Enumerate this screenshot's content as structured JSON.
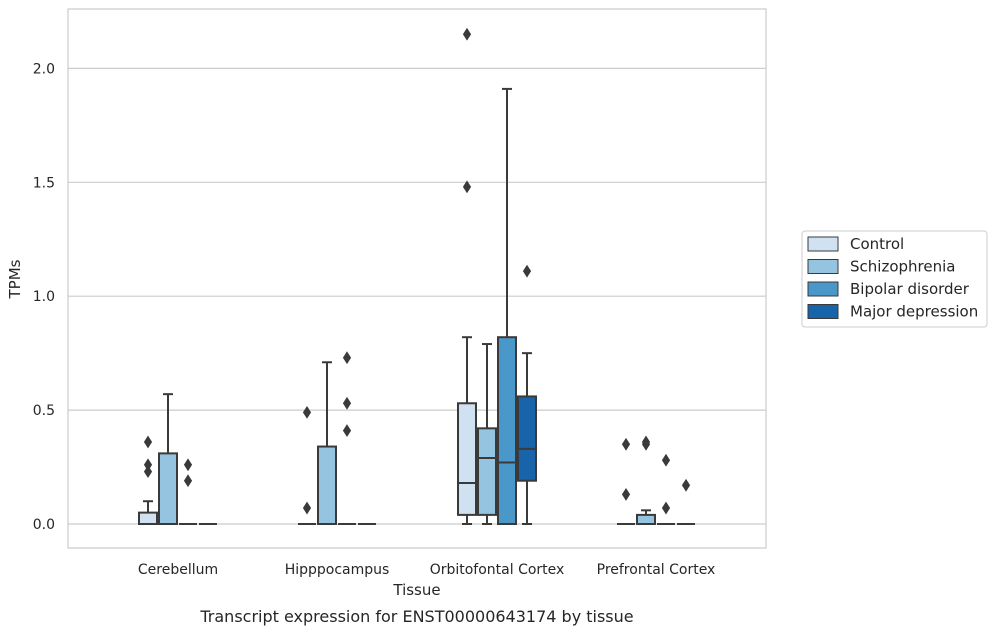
{
  "caption": "Transcript expression for ENST00000643174 by tissue",
  "chart_data": {
    "type": "box",
    "xlabel": "Tissue",
    "ylabel": "TPMs",
    "ylim": [
      -0.1,
      2.27
    ],
    "yticks": [
      0.0,
      0.5,
      1.0,
      1.5,
      2.0
    ],
    "ytick_labels": [
      "0.0",
      "0.5",
      "1.0",
      "1.5",
      "2.0"
    ],
    "grid": "horizontal",
    "legend_position": "right",
    "categories": [
      "Cerebellum",
      "Hipppocampus",
      "Orbitofontal Cortex",
      "Prefrontal Cortex"
    ],
    "series": [
      {
        "name": "Control",
        "color": "#d0e1f2",
        "boxes": [
          {
            "q1": 0.0,
            "median": 0.0,
            "q3": 0.05,
            "whisker_low": 0.0,
            "whisker_high": 0.1,
            "outliers": [
              0.36,
              0.26,
              0.23
            ]
          },
          {
            "q1": 0.0,
            "median": 0.0,
            "q3": 0.0,
            "whisker_low": 0.0,
            "whisker_high": 0.0,
            "outliers": [
              0.49,
              0.07
            ]
          },
          {
            "q1": 0.04,
            "median": 0.18,
            "q3": 0.53,
            "whisker_low": 0.0,
            "whisker_high": 0.82,
            "outliers": [
              2.15,
              1.48
            ]
          },
          {
            "q1": 0.0,
            "median": 0.0,
            "q3": 0.0,
            "whisker_low": 0.0,
            "whisker_high": 0.0,
            "outliers": [
              0.35,
              0.13
            ]
          }
        ]
      },
      {
        "name": "Schizophrenia",
        "color": "#94c4df",
        "boxes": [
          {
            "q1": 0.0,
            "median": 0.0,
            "q3": 0.31,
            "whisker_low": 0.0,
            "whisker_high": 0.57,
            "outliers": []
          },
          {
            "q1": 0.0,
            "median": 0.0,
            "q3": 0.34,
            "whisker_low": 0.0,
            "whisker_high": 0.71,
            "outliers": []
          },
          {
            "q1": 0.04,
            "median": 0.29,
            "q3": 0.42,
            "whisker_low": 0.0,
            "whisker_high": 0.79,
            "outliers": []
          },
          {
            "q1": 0.0,
            "median": 0.0,
            "q3": 0.04,
            "whisker_low": 0.0,
            "whisker_high": 0.06,
            "outliers": [
              0.36,
              0.35
            ]
          }
        ]
      },
      {
        "name": "Bipolar disorder",
        "color": "#4a98c9",
        "boxes": [
          {
            "q1": 0.0,
            "median": 0.0,
            "q3": 0.0,
            "whisker_low": 0.0,
            "whisker_high": 0.0,
            "outliers": [
              0.26,
              0.19
            ]
          },
          {
            "q1": 0.0,
            "median": 0.0,
            "q3": 0.0,
            "whisker_low": 0.0,
            "whisker_high": 0.0,
            "outliers": [
              0.73,
              0.53,
              0.41
            ]
          },
          {
            "q1": 0.0,
            "median": 0.27,
            "q3": 0.82,
            "whisker_low": 0.0,
            "whisker_high": 1.91,
            "outliers": []
          },
          {
            "q1": 0.0,
            "median": 0.0,
            "q3": 0.0,
            "whisker_low": 0.0,
            "whisker_high": 0.0,
            "outliers": [
              0.28,
              0.07
            ]
          }
        ]
      },
      {
        "name": "Major depression",
        "color": "#1764ab",
        "boxes": [
          {
            "q1": 0.0,
            "median": 0.0,
            "q3": 0.0,
            "whisker_low": 0.0,
            "whisker_high": 0.0,
            "outliers": []
          },
          {
            "q1": 0.0,
            "median": 0.0,
            "q3": 0.0,
            "whisker_low": 0.0,
            "whisker_high": 0.0,
            "outliers": []
          },
          {
            "q1": 0.19,
            "median": 0.33,
            "q3": 0.56,
            "whisker_low": 0.0,
            "whisker_high": 0.75,
            "outliers": [
              1.11
            ]
          },
          {
            "q1": 0.0,
            "median": 0.0,
            "q3": 0.0,
            "whisker_low": 0.0,
            "whisker_high": 0.0,
            "outliers": [
              0.17
            ]
          }
        ]
      }
    ]
  }
}
